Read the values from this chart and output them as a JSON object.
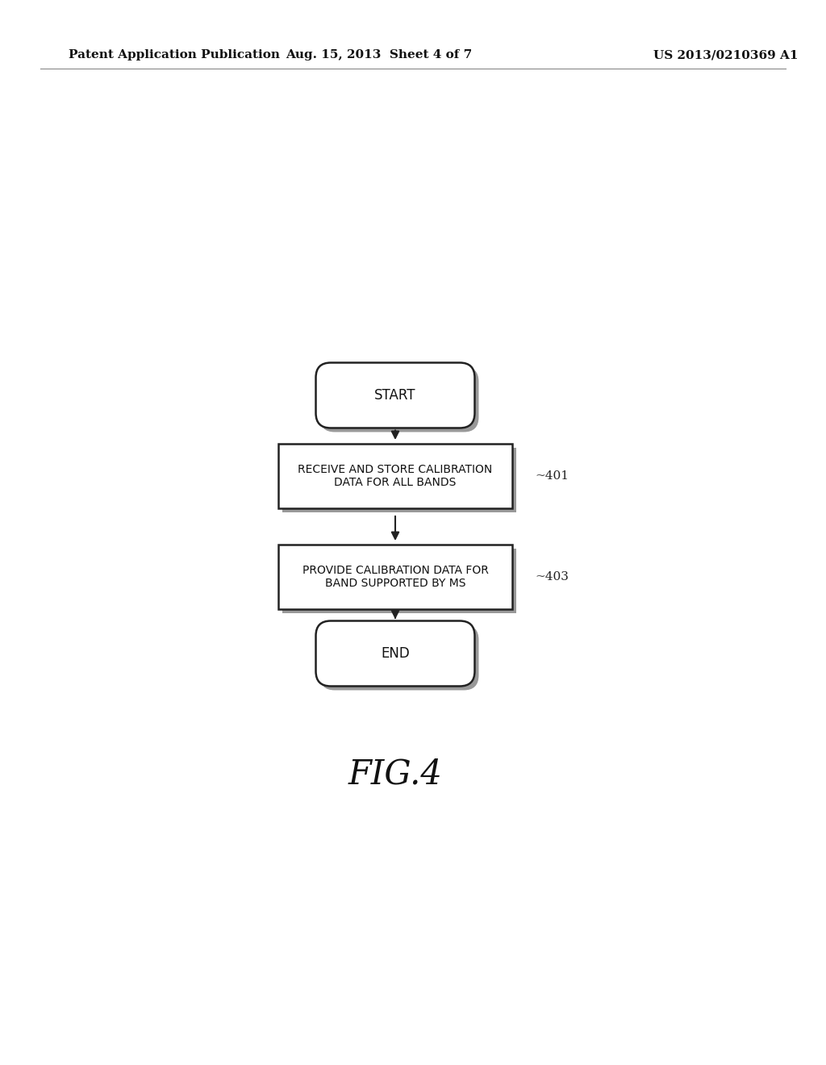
{
  "background_color": "#ffffff",
  "header_left": "Patent Application Publication",
  "header_center": "Aug. 15, 2013  Sheet 4 of 7",
  "header_right": "US 2013/0210369 A1",
  "header_fontsize": 11,
  "flowchart": {
    "start_label": "START",
    "box1_label": "RECEIVE AND STORE CALIBRATION\nDATA FOR ALL BANDS",
    "box1_ref": "—401",
    "box2_label": "PROVIDE CALIBRATION DATA FOR\nBAND SUPPORTED BY MS",
    "box2_ref": "—403",
    "end_label": "END"
  },
  "fig_label": "FIG.4",
  "fig_label_fontsize": 30,
  "line_color": "#222222",
  "fill_color": "#ffffff",
  "shadow_color": "#999999",
  "text_fontsize": 10,
  "ref_fontsize": 11
}
